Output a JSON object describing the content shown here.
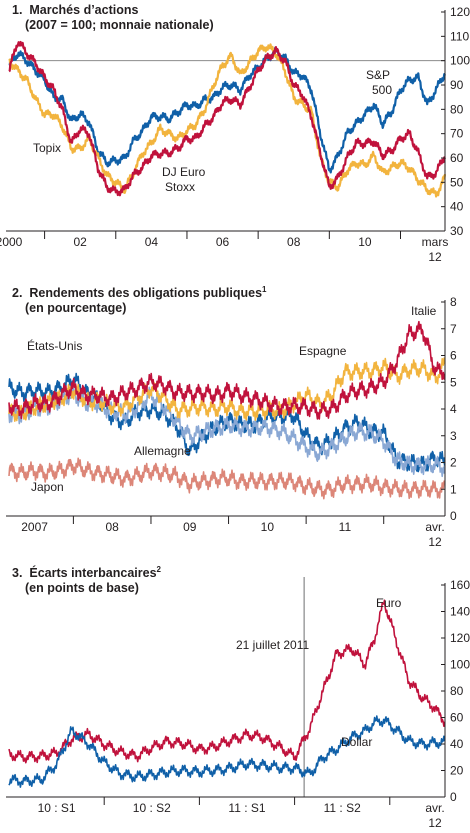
{
  "colors": {
    "sp500": "#1060a8",
    "topix": "#f2b43e",
    "euro_stoxx": "#c0123c",
    "us": "#1060a8",
    "germany": "#8aa8d4",
    "spain": "#f2b43e",
    "italy": "#c0123c",
    "japan": "#dc8678",
    "euro": "#c0123c",
    "dollar": "#1060a8",
    "axis": "#231f20",
    "grid": "#8c8c8c"
  },
  "chart_data": [
    {
      "type": "line",
      "title": "1.  Marchés d’actions",
      "subtitle": "(2007 = 100; monnaie nationale)",
      "ylim": [
        30,
        120
      ],
      "yticks": [
        "30",
        "40",
        "50",
        "60",
        "70",
        "80",
        "90",
        "100",
        "110",
        "120"
      ],
      "xlim": [
        2000.0,
        2012.25
      ],
      "xticks": [
        {
          "label": "2000",
          "x": 2000
        },
        {
          "label": "02",
          "x": 2002
        },
        {
          "label": "04",
          "x": 2004
        },
        {
          "label": "06",
          "x": 2006
        },
        {
          "label": "08",
          "x": 2008
        },
        {
          "label": "10",
          "x": 2010
        }
      ],
      "xlabel_end": [
        "mars",
        "12"
      ],
      "reference_line": 100,
      "series": [
        {
          "name": "S&P 500",
          "color_key": "sp500",
          "x": [
            2000.0,
            2000.25,
            2000.5,
            2000.75,
            2001.0,
            2001.25,
            2001.5,
            2001.75,
            2002.0,
            2002.25,
            2002.5,
            2002.75,
            2003.0,
            2003.25,
            2003.5,
            2003.75,
            2004.0,
            2004.25,
            2004.5,
            2004.75,
            2005.0,
            2005.25,
            2005.5,
            2005.75,
            2006.0,
            2006.25,
            2006.5,
            2006.75,
            2007.0,
            2007.25,
            2007.5,
            2007.75,
            2008.0,
            2008.25,
            2008.5,
            2008.75,
            2009.0,
            2009.25,
            2009.5,
            2009.75,
            2010.0,
            2010.25,
            2010.5,
            2010.75,
            2011.0,
            2011.25,
            2011.5,
            2011.75,
            2012.0,
            2012.25
          ],
          "values": [
            98,
            103,
            100,
            96,
            92,
            85,
            84,
            75,
            78,
            75,
            63,
            58,
            59,
            60,
            67,
            71,
            77,
            77,
            76,
            79,
            82,
            81,
            84,
            85,
            89,
            90,
            88,
            94,
            97,
            101,
            104,
            101,
            95,
            94,
            88,
            70,
            55,
            61,
            70,
            74,
            78,
            82,
            74,
            79,
            88,
            92,
            93,
            82,
            88,
            95
          ]
        },
        {
          "name": "Topix",
          "color_key": "topix",
          "x": [
            2000.0,
            2000.25,
            2000.5,
            2000.75,
            2001.0,
            2001.25,
            2001.5,
            2001.75,
            2002.0,
            2002.25,
            2002.5,
            2002.75,
            2003.0,
            2003.25,
            2003.5,
            2003.75,
            2004.0,
            2004.25,
            2004.5,
            2004.75,
            2005.0,
            2005.25,
            2005.5,
            2005.75,
            2006.0,
            2006.25,
            2006.5,
            2006.75,
            2007.0,
            2007.25,
            2007.5,
            2007.75,
            2008.0,
            2008.25,
            2008.5,
            2008.75,
            2009.0,
            2009.25,
            2009.5,
            2009.75,
            2010.0,
            2010.25,
            2010.5,
            2010.75,
            2011.0,
            2011.25,
            2011.5,
            2011.75,
            2012.0,
            2012.25
          ],
          "values": [
            100,
            96,
            92,
            84,
            78,
            78,
            73,
            64,
            64,
            68,
            60,
            53,
            50,
            47,
            54,
            62,
            66,
            72,
            70,
            68,
            71,
            74,
            80,
            90,
            98,
            102,
            94,
            99,
            104,
            106,
            103,
            96,
            85,
            82,
            79,
            60,
            50,
            48,
            55,
            58,
            57,
            61,
            54,
            56,
            58,
            56,
            51,
            47,
            45,
            52
          ]
        },
        {
          "name": "DJ Euro Stoxx",
          "color_key": "euro_stoxx",
          "x": [
            2000.0,
            2000.25,
            2000.5,
            2000.75,
            2001.0,
            2001.25,
            2001.5,
            2001.75,
            2002.0,
            2002.25,
            2002.5,
            2002.75,
            2003.0,
            2003.25,
            2003.5,
            2003.75,
            2004.0,
            2004.25,
            2004.5,
            2004.75,
            2005.0,
            2005.25,
            2005.5,
            2005.75,
            2006.0,
            2006.25,
            2006.5,
            2006.75,
            2007.0,
            2007.25,
            2007.5,
            2007.75,
            2008.0,
            2008.25,
            2008.5,
            2008.75,
            2009.0,
            2009.25,
            2009.5,
            2009.75,
            2010.0,
            2010.25,
            2010.5,
            2010.75,
            2011.0,
            2011.25,
            2011.5,
            2011.75,
            2012.0,
            2012.25
          ],
          "values": [
            96,
            108,
            103,
            99,
            93,
            88,
            80,
            66,
            72,
            70,
            56,
            48,
            46,
            47,
            53,
            56,
            61,
            62,
            62,
            64,
            68,
            68,
            73,
            77,
            83,
            84,
            82,
            89,
            96,
            101,
            104,
            100,
            90,
            86,
            77,
            62,
            48,
            52,
            60,
            66,
            66,
            67,
            61,
            63,
            68,
            70,
            62,
            52,
            54,
            61
          ]
        }
      ],
      "labels": [
        {
          "text": "S&P",
          "series": "S&P 500"
        },
        {
          "text": "500",
          "series": "S&P 500"
        },
        {
          "text": "Topix",
          "series": "Topix"
        },
        {
          "text": "DJ Euro",
          "series": "DJ Euro Stoxx"
        },
        {
          "text": "Stoxx",
          "series": "DJ Euro Stoxx"
        }
      ]
    },
    {
      "type": "line",
      "title": "2.  Rendements des obligations publiques",
      "title_sup": "1",
      "subtitle": "(en pourcentage)",
      "ylim": [
        0,
        8
      ],
      "yticks": [
        "0",
        "1",
        "2",
        "3",
        "4",
        "5",
        "6",
        "7",
        "8"
      ],
      "xlim": [
        2006.67,
        2012.29
      ],
      "xticks": [
        {
          "label": "2007",
          "x": 2007
        },
        {
          "label": "08",
          "x": 2008
        },
        {
          "label": "09",
          "x": 2009
        },
        {
          "label": "10",
          "x": 2010
        },
        {
          "label": "11",
          "x": 2011
        }
      ],
      "xlabel_end": [
        "avr.",
        "12"
      ],
      "series": [
        {
          "name": "États-Unis",
          "color_key": "us",
          "x": [
            2006.67,
            2006.83,
            2007.0,
            2007.17,
            2007.33,
            2007.5,
            2007.67,
            2007.83,
            2008.0,
            2008.17,
            2008.33,
            2008.5,
            2008.67,
            2008.83,
            2009.0,
            2009.17,
            2009.33,
            2009.5,
            2009.67,
            2009.83,
            2010.0,
            2010.17,
            2010.33,
            2010.5,
            2010.67,
            2010.83,
            2011.0,
            2011.17,
            2011.33,
            2011.5,
            2011.67,
            2011.83,
            2012.0,
            2012.17,
            2012.29
          ],
          "values": [
            4.8,
            4.6,
            4.7,
            4.6,
            4.8,
            5.1,
            4.6,
            4.3,
            3.7,
            3.5,
            3.9,
            4.0,
            3.8,
            3.4,
            2.4,
            3.0,
            3.3,
            3.6,
            3.4,
            3.4,
            3.7,
            3.7,
            3.8,
            3.0,
            2.6,
            2.8,
            3.3,
            3.5,
            3.2,
            3.1,
            2.1,
            2.0,
            1.9,
            2.2,
            2.0
          ]
        },
        {
          "name": "Allemagne",
          "color_key": "germany",
          "x": [
            2006.67,
            2006.83,
            2007.0,
            2007.17,
            2007.33,
            2007.5,
            2007.67,
            2007.83,
            2008.0,
            2008.17,
            2008.33,
            2008.5,
            2008.67,
            2008.83,
            2009.0,
            2009.17,
            2009.33,
            2009.5,
            2009.67,
            2009.83,
            2010.0,
            2010.17,
            2010.33,
            2010.5,
            2010.67,
            2010.83,
            2011.0,
            2011.17,
            2011.33,
            2011.5,
            2011.67,
            2011.83,
            2012.0,
            2012.17,
            2012.29
          ],
          "values": [
            3.8,
            3.8,
            4.0,
            4.1,
            4.3,
            4.6,
            4.2,
            4.2,
            3.9,
            3.8,
            4.1,
            4.5,
            4.1,
            3.5,
            3.0,
            3.1,
            3.3,
            3.4,
            3.3,
            3.3,
            3.3,
            3.2,
            2.9,
            2.6,
            2.3,
            2.6,
            2.9,
            3.2,
            3.1,
            2.8,
            2.1,
            1.9,
            1.9,
            1.9,
            1.8
          ]
        },
        {
          "name": "Espagne",
          "color_key": "spain",
          "x": [
            2006.67,
            2006.83,
            2007.0,
            2007.17,
            2007.33,
            2007.5,
            2007.67,
            2007.83,
            2008.0,
            2008.17,
            2008.33,
            2008.5,
            2008.67,
            2008.83,
            2009.0,
            2009.17,
            2009.33,
            2009.5,
            2009.67,
            2009.83,
            2010.0,
            2010.17,
            2010.33,
            2010.5,
            2010.67,
            2010.83,
            2011.0,
            2011.17,
            2011.33,
            2011.5,
            2011.67,
            2011.83,
            2012.0,
            2012.17,
            2012.29
          ],
          "values": [
            3.9,
            3.8,
            4.1,
            4.2,
            4.4,
            4.7,
            4.3,
            4.3,
            4.1,
            4.1,
            4.4,
            4.8,
            4.4,
            4.0,
            4.0,
            4.1,
            4.0,
            4.1,
            3.9,
            3.9,
            4.0,
            3.9,
            4.2,
            4.5,
            4.2,
            4.5,
            5.4,
            5.4,
            5.4,
            5.6,
            5.2,
            5.5,
            5.5,
            5.2,
            5.7
          ]
        },
        {
          "name": "Italie",
          "color_key": "italy",
          "x": [
            2006.67,
            2006.83,
            2007.0,
            2007.17,
            2007.33,
            2007.5,
            2007.67,
            2007.83,
            2008.0,
            2008.17,
            2008.33,
            2008.5,
            2008.67,
            2008.83,
            2009.0,
            2009.17,
            2009.33,
            2009.5,
            2009.67,
            2009.83,
            2010.0,
            2010.17,
            2010.33,
            2010.5,
            2010.67,
            2010.83,
            2011.0,
            2011.17,
            2011.33,
            2011.5,
            2011.67,
            2011.83,
            2012.0,
            2012.17,
            2012.29
          ],
          "values": [
            4.1,
            4.0,
            4.2,
            4.2,
            4.5,
            4.8,
            4.5,
            4.5,
            4.4,
            4.6,
            4.8,
            5.0,
            4.9,
            4.6,
            4.6,
            4.6,
            4.5,
            4.7,
            4.5,
            4.4,
            4.2,
            4.1,
            4.1,
            4.1,
            3.9,
            4.0,
            4.5,
            4.7,
            4.8,
            5.0,
            5.8,
            6.8,
            7.0,
            5.4,
            5.4
          ]
        },
        {
          "name": "Japon",
          "color_key": "japan",
          "x": [
            2006.67,
            2006.83,
            2007.0,
            2007.17,
            2007.33,
            2007.5,
            2007.67,
            2007.83,
            2008.0,
            2008.17,
            2008.33,
            2008.5,
            2008.67,
            2008.83,
            2009.0,
            2009.17,
            2009.33,
            2009.5,
            2009.67,
            2009.83,
            2010.0,
            2010.17,
            2010.33,
            2010.5,
            2010.67,
            2010.83,
            2011.0,
            2011.17,
            2011.33,
            2011.5,
            2011.67,
            2011.83,
            2012.0,
            2012.17,
            2012.29
          ],
          "values": [
            1.7,
            1.6,
            1.7,
            1.6,
            1.7,
            1.9,
            1.7,
            1.6,
            1.5,
            1.4,
            1.5,
            1.7,
            1.6,
            1.5,
            1.2,
            1.3,
            1.4,
            1.4,
            1.3,
            1.3,
            1.3,
            1.3,
            1.3,
            1.1,
            1.0,
            1.0,
            1.2,
            1.2,
            1.2,
            1.1,
            1.0,
            1.0,
            1.0,
            1.0,
            1.0
          ]
        }
      ],
      "labels": [
        {
          "text": "États-Unis",
          "series": "États-Unis"
        },
        {
          "text": "Espagne",
          "series": "Espagne"
        },
        {
          "text": "Italie",
          "series": "Italie"
        },
        {
          "text": "Allemagne",
          "series": "Allemagne"
        },
        {
          "text": "Japon",
          "series": "Japon"
        }
      ]
    },
    {
      "type": "line",
      "title": "3.  Écarts interbancaires",
      "title_sup": "2",
      "subtitle": "(en points de base)",
      "ylim": [
        0,
        160
      ],
      "yticks": [
        "0",
        "20",
        "40",
        "60",
        "80",
        "100",
        "120",
        "140",
        "160"
      ],
      "xlim": [
        2010.0,
        2012.29
      ],
      "xticks": [
        {
          "label": "10 : S1",
          "x": 2010.25
        },
        {
          "label": "10 : S2",
          "x": 2010.75
        },
        {
          "label": "11 : S1",
          "x": 2011.25
        },
        {
          "label": "11 : S2",
          "x": 2011.75
        }
      ],
      "xlabel_end": [
        "avr.",
        "12"
      ],
      "vline": {
        "x": 2011.55,
        "label": "21 juillet 2011"
      },
      "series": [
        {
          "name": "Euro",
          "color_key": "euro",
          "x": [
            2010.0,
            2010.08,
            2010.17,
            2010.25,
            2010.33,
            2010.42,
            2010.5,
            2010.58,
            2010.67,
            2010.75,
            2010.83,
            2010.92,
            2011.0,
            2011.08,
            2011.17,
            2011.25,
            2011.33,
            2011.42,
            2011.5,
            2011.58,
            2011.65,
            2011.72,
            2011.8,
            2011.87,
            2011.92,
            2011.97,
            2012.04,
            2012.1,
            2012.17,
            2012.23,
            2012.29
          ],
          "values": [
            32,
            30,
            31,
            33,
            44,
            47,
            40,
            34,
            31,
            37,
            42,
            40,
            36,
            38,
            43,
            47,
            45,
            38,
            30,
            52,
            80,
            108,
            112,
            100,
            120,
            148,
            115,
            88,
            75,
            68,
            57
          ]
        },
        {
          "name": "Dollar",
          "color_key": "dollar",
          "x": [
            2010.0,
            2010.08,
            2010.17,
            2010.25,
            2010.33,
            2010.42,
            2010.5,
            2010.58,
            2010.67,
            2010.75,
            2010.83,
            2010.92,
            2011.0,
            2011.08,
            2011.17,
            2011.25,
            2011.33,
            2011.42,
            2011.5,
            2011.58,
            2011.65,
            2011.72,
            2011.8,
            2011.87,
            2011.92,
            2011.97,
            2012.04,
            2012.1,
            2012.17,
            2012.23,
            2012.29
          ],
          "values": [
            13,
            12,
            13,
            25,
            50,
            40,
            26,
            18,
            15,
            17,
            19,
            20,
            19,
            20,
            22,
            25,
            24,
            22,
            22,
            17,
            30,
            36,
            45,
            50,
            56,
            58,
            50,
            42,
            40,
            41,
            41
          ]
        }
      ],
      "labels": [
        {
          "text": "Euro",
          "series": "Euro"
        },
        {
          "text": "Dollar",
          "series": "Dollar"
        }
      ]
    }
  ]
}
